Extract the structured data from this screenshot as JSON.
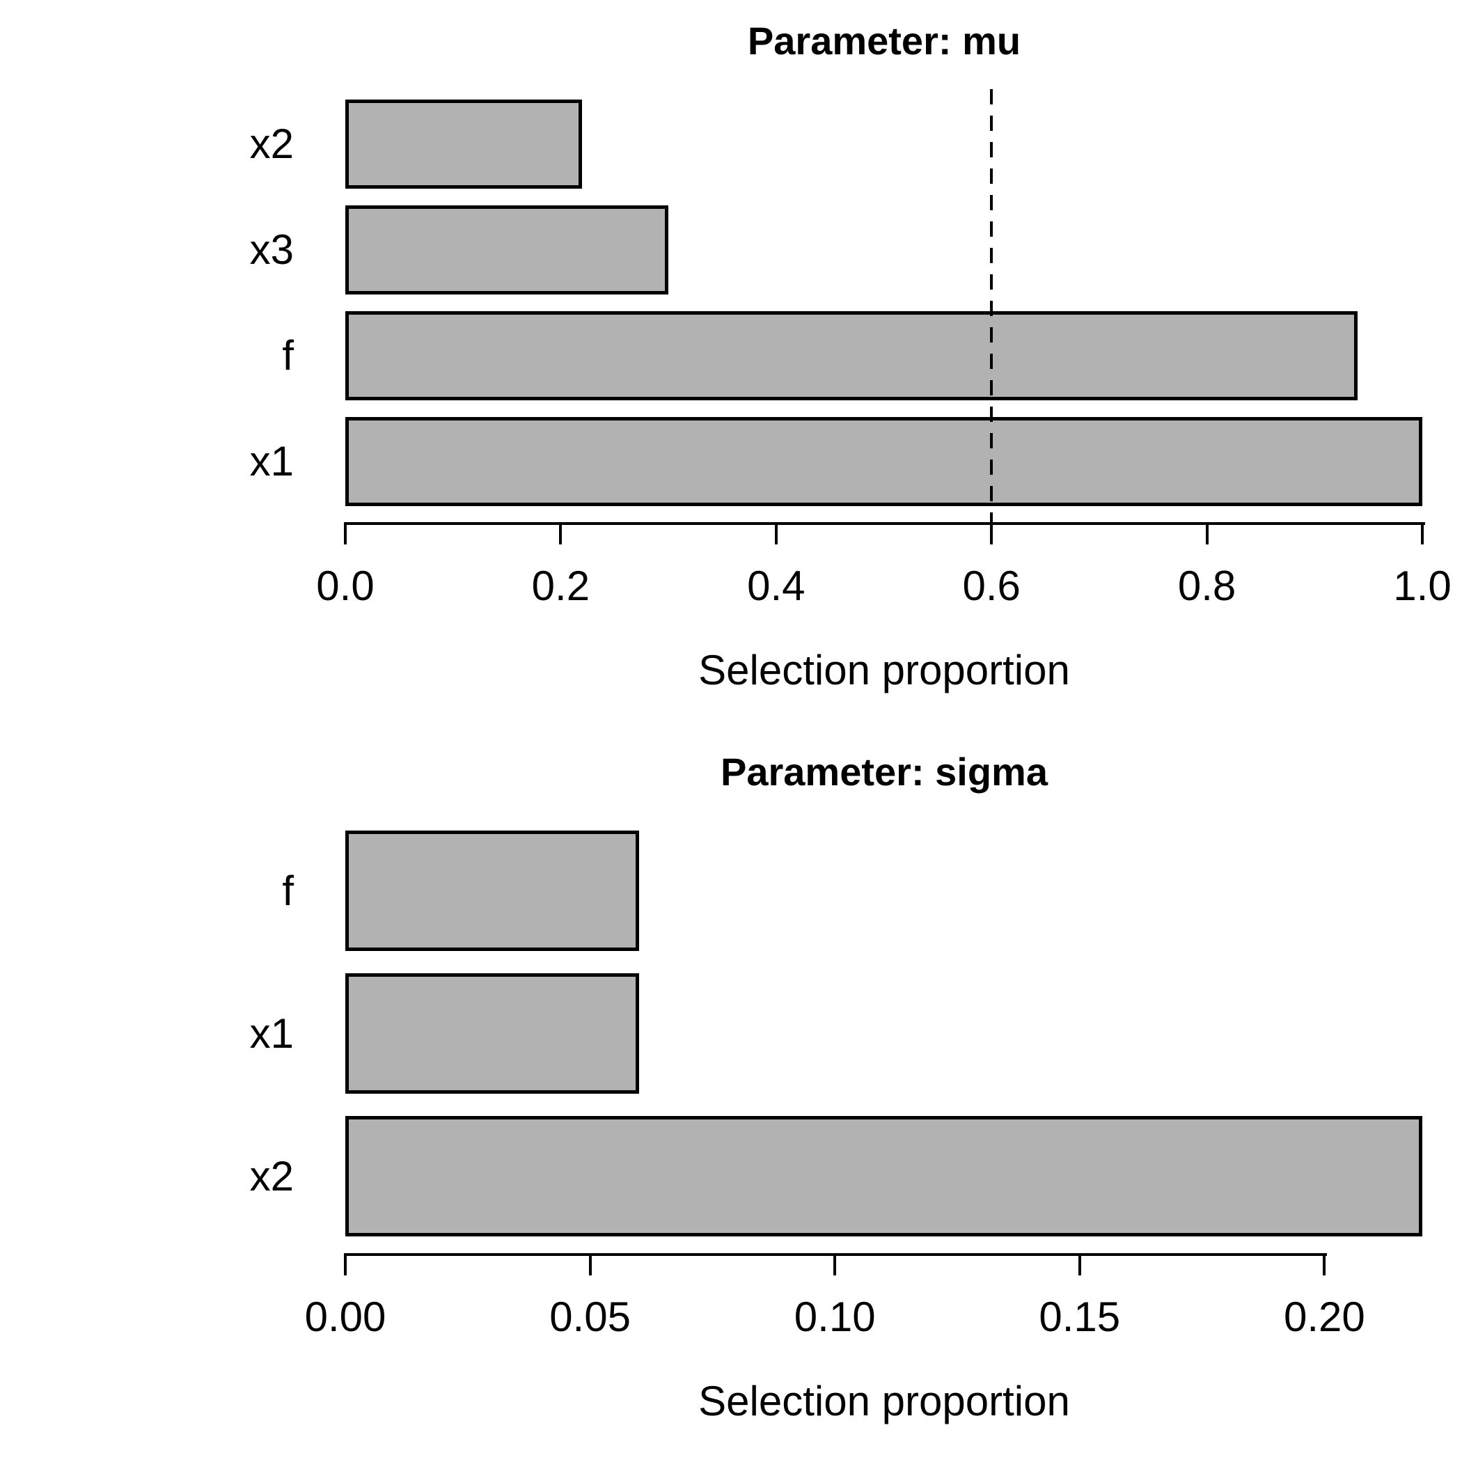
{
  "chart_data": [
    {
      "type": "bar",
      "orientation": "horizontal",
      "title": "Parameter: mu",
      "xlabel": "Selection proportion",
      "categories": [
        "x2",
        "x3",
        "f",
        "x1"
      ],
      "values": [
        0.22,
        0.3,
        0.94,
        1.0
      ],
      "xlim": [
        0,
        1.0
      ],
      "xticks": [
        0,
        0.2,
        0.4,
        0.6,
        0.8,
        1.0
      ],
      "xtick_labels": [
        "0.0",
        "0.2",
        "0.4",
        "0.6",
        "0.8",
        "1.0"
      ],
      "reference_line": {
        "value": 0.6,
        "style": "dashed",
        "color": "#000000"
      },
      "bar_fill": "#b2b2b2",
      "bar_border": "#000000",
      "grid": false,
      "legend": false
    },
    {
      "type": "bar",
      "orientation": "horizontal",
      "title": "Parameter: sigma",
      "xlabel": "Selection proportion",
      "categories": [
        "f",
        "x1",
        "x2"
      ],
      "values": [
        0.06,
        0.06,
        0.22
      ],
      "xlim": [
        0,
        0.22
      ],
      "xticks": [
        0,
        0.05,
        0.1,
        0.15,
        0.2
      ],
      "xtick_labels": [
        "0.00",
        "0.05",
        "0.10",
        "0.15",
        "0.20"
      ],
      "reference_line": null,
      "bar_fill": "#b2b2b2",
      "bar_border": "#000000",
      "grid": false,
      "legend": false
    }
  ],
  "background": "#ffffff",
  "text_color": "#000000"
}
